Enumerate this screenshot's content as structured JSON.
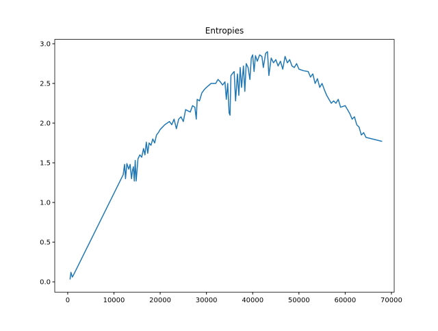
{
  "chart_data": {
    "type": "line",
    "title": "Entropies",
    "color": "#1f77b4",
    "x": [
      500,
      700,
      1000,
      1200,
      12000,
      12300,
      12500,
      12800,
      13200,
      13500,
      13800,
      14000,
      14200,
      14400,
      14600,
      14800,
      15200,
      15600,
      16000,
      16400,
      16700,
      17000,
      17300,
      17600,
      18000,
      18400,
      18800,
      19200,
      19600,
      20000,
      20500,
      21000,
      21500,
      22000,
      22500,
      23000,
      23500,
      24000,
      24500,
      25000,
      25500,
      26500,
      27000,
      27500,
      27800,
      28000,
      28500,
      29000,
      29500,
      30000,
      31000,
      32000,
      32500,
      33000,
      33500,
      34000,
      34300,
      34600,
      34900,
      35100,
      35300,
      35700,
      36000,
      36300,
      36700,
      37000,
      37300,
      37600,
      38000,
      38300,
      38600,
      39000,
      39400,
      39700,
      40000,
      40300,
      40600,
      41000,
      41500,
      42000,
      42300,
      42800,
      43200,
      43500,
      44000,
      44500,
      45000,
      45500,
      46000,
      46500,
      47000,
      47500,
      48000,
      48500,
      49000,
      49500,
      50000,
      51000,
      52000,
      52500,
      53000,
      53500,
      54000,
      54500,
      55000,
      55500,
      56000,
      56500,
      57000,
      57500,
      58000,
      58500,
      59000,
      60000,
      61000,
      61500,
      62000,
      62500,
      63000,
      63500,
      64000,
      64500,
      68000
    ],
    "values": [
      0.03,
      0.12,
      0.06,
      0.08,
      1.35,
      1.48,
      1.3,
      1.49,
      1.42,
      1.48,
      1.3,
      1.4,
      1.45,
      1.27,
      1.53,
      1.27,
      1.55,
      1.6,
      1.57,
      1.68,
      1.6,
      1.76,
      1.62,
      1.75,
      1.72,
      1.8,
      1.75,
      1.85,
      1.88,
      1.92,
      1.95,
      1.98,
      2.0,
      2.02,
      1.98,
      2.05,
      1.93,
      2.05,
      2.08,
      2.02,
      2.17,
      2.14,
      2.22,
      2.2,
      2.05,
      2.3,
      2.28,
      2.38,
      2.42,
      2.45,
      2.5,
      2.5,
      2.55,
      2.52,
      2.48,
      2.52,
      2.3,
      2.5,
      2.13,
      2.1,
      2.6,
      2.63,
      2.65,
      2.28,
      2.62,
      2.35,
      2.7,
      2.45,
      2.72,
      2.4,
      2.75,
      2.7,
      2.55,
      2.82,
      2.86,
      2.65,
      2.85,
      2.78,
      2.86,
      2.84,
      2.7,
      2.88,
      2.9,
      2.6,
      2.82,
      2.76,
      2.8,
      2.72,
      2.78,
      2.68,
      2.84,
      2.76,
      2.8,
      2.72,
      2.7,
      2.75,
      2.68,
      2.66,
      2.65,
      2.58,
      2.62,
      2.5,
      2.56,
      2.45,
      2.5,
      2.42,
      2.35,
      2.3,
      2.25,
      2.28,
      2.25,
      2.3,
      2.2,
      2.22,
      2.12,
      2.05,
      2.08,
      1.98,
      1.95,
      1.85,
      1.88,
      1.82,
      1.77
    ],
    "xlim": [
      -2800,
      70600
    ],
    "ylim": [
      -0.13,
      3.055
    ],
    "xticks": [
      0,
      10000,
      20000,
      30000,
      40000,
      50000,
      60000,
      70000
    ],
    "yticks": [
      {
        "value": 0,
        "label": "0.0"
      },
      0.5,
      {
        "value": 1,
        "label": "1.0"
      },
      1.5,
      {
        "value": 2,
        "label": "2.0"
      },
      2.5,
      {
        "value": 3,
        "label": "3.0"
      }
    ]
  }
}
